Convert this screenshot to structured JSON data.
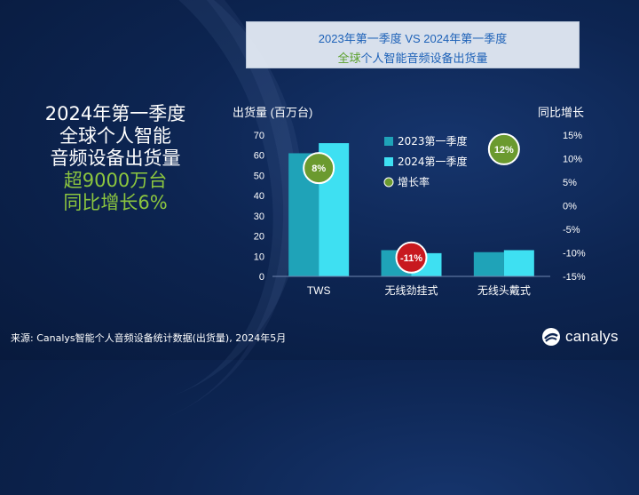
{
  "title": {
    "line1": "2023年第一季度 VS 2024年第一季度",
    "line2_highlight": "全球",
    "line2_rest": "个人智能音频设备出货量"
  },
  "headline": {
    "line1": "2024年第一季度",
    "line2": "全球个人智能",
    "line3": "音频设备出货量",
    "line4": "超9000万台",
    "line5": "同比增长6%"
  },
  "source": "来源: Canalys智能个人音频设备统计数据(出货量), 2024年5月",
  "logo": {
    "text": "canalys",
    "icon": "canalys-logo-icon"
  },
  "colors": {
    "series_2023": "#1fa3b8",
    "series_2024": "#3ee0f2",
    "growth_positive": "#6b9a2f",
    "growth_negative": "#c8191f"
  },
  "chart_data": {
    "type": "bar",
    "categories": [
      "TWS",
      "无线劲挂式",
      "无线头戴式"
    ],
    "series": [
      {
        "name": "2023第一季度",
        "values": [
          61,
          13,
          12
        ]
      },
      {
        "name": "2024第一季度",
        "values": [
          66,
          11.5,
          13
        ]
      }
    ],
    "growth": {
      "name": "增长率",
      "values": [
        8,
        -11,
        12
      ],
      "labels": [
        "8%",
        "-11%",
        "12%"
      ]
    },
    "ylabel_left": "出货量 (百万台)",
    "ylabel_right": "同比增长",
    "ylim_left": [
      0,
      70
    ],
    "ylim_right": [
      -15,
      15
    ],
    "yticks_left": [
      "0",
      "10",
      "20",
      "30",
      "40",
      "50",
      "60",
      "70"
    ],
    "yticks_right": [
      "-15%",
      "-10%",
      "-5%",
      "0%",
      "5%",
      "10%",
      "15%"
    ],
    "legend_placement": "center-right",
    "grid": false
  }
}
